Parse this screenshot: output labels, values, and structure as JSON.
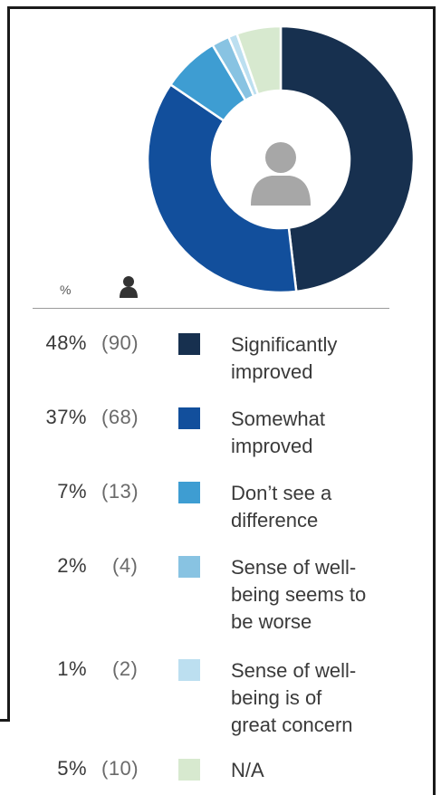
{
  "chart_data": {
    "type": "pie",
    "style": "donut",
    "header": {
      "percent_label": "%",
      "count_icon": "person-icon"
    },
    "center_icon": "person-icon",
    "legend_position": "bottom",
    "categories": [
      "Significantly improved",
      "Somewhat improved",
      "Don’t see a difference",
      "Sense of well-being seems to be worse",
      "Sense of well-being is of great concern",
      "N/A"
    ],
    "label_lines": [
      "Significantly\nimproved",
      "Somewhat\nimproved",
      "Don’t see a\ndifference",
      "Sense of well-\nbeing seems to\nbe worse",
      "Sense of well-\nbeing is of\ngreat concern",
      "N/A"
    ],
    "percents": [
      48,
      37,
      7,
      2,
      1,
      5
    ],
    "percent_labels": [
      "48%",
      "37%",
      "7%",
      "2%",
      "1%",
      "5%"
    ],
    "counts": [
      90,
      68,
      13,
      4,
      2,
      10
    ],
    "count_labels": [
      "(90)",
      "(68)",
      "(13)",
      "(4)",
      "(2)",
      "(10)"
    ],
    "colors": [
      "#17304f",
      "#124f9c",
      "#3e9dd2",
      "#88c3e2",
      "#bcdff0",
      "#d7e9cf"
    ]
  }
}
